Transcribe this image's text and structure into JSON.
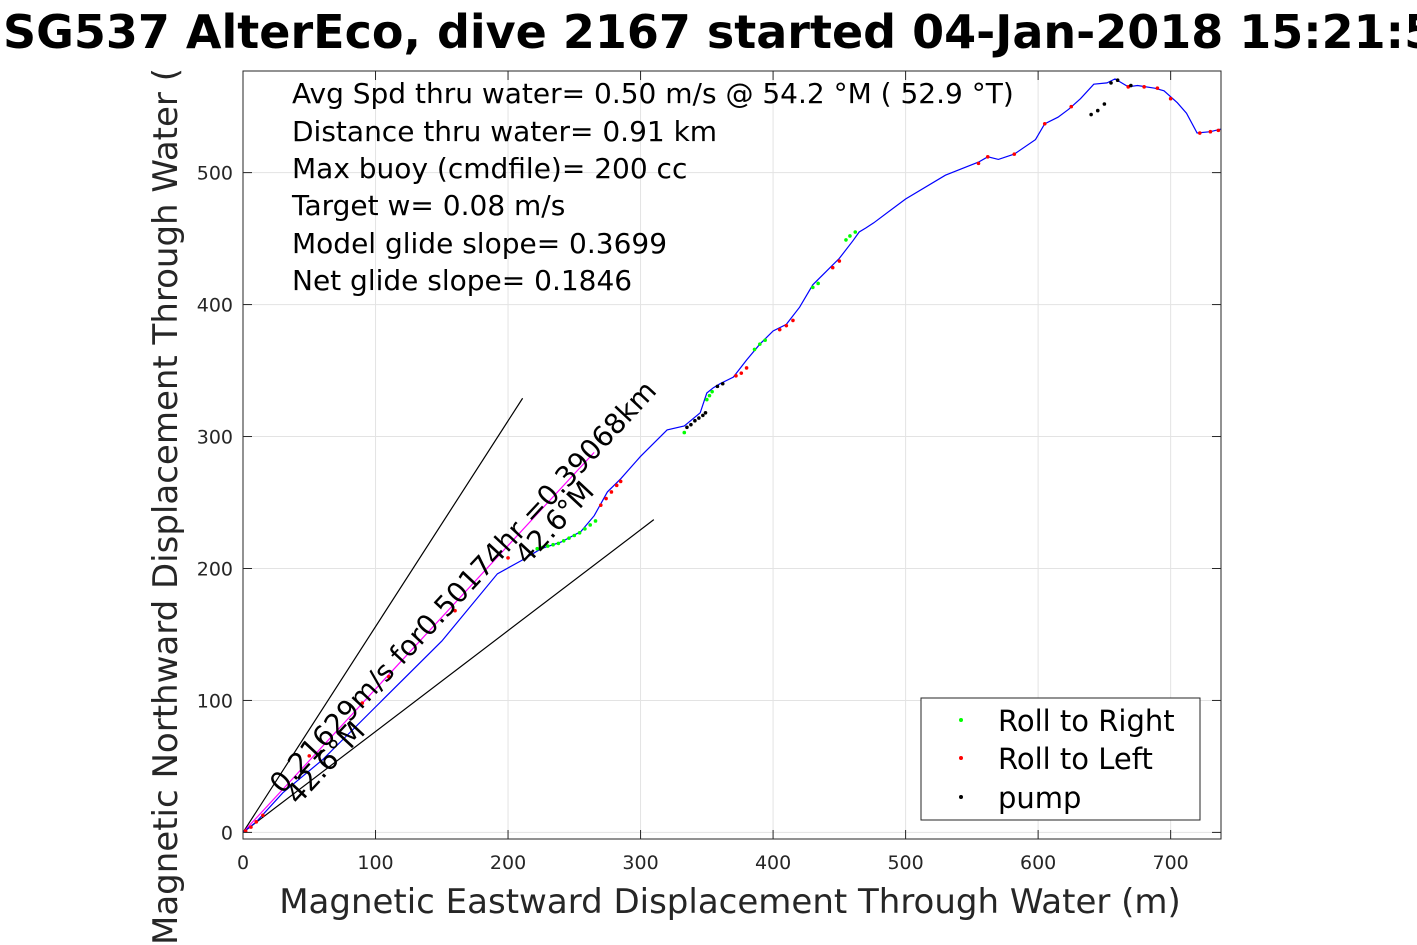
{
  "chart_data": {
    "type": "line",
    "title": "SG537 AlterEco, dive 2167 started 04-Jan-2018 15:21:5",
    "xlabel": "Magnetic Eastward Displacement Through Water (m)",
    "ylabel": "Magnetic Northward Displacement Through Water (",
    "xlim": [
      0,
      738
    ],
    "ylim": [
      -5,
      577
    ],
    "x_ticks": [
      0,
      100,
      200,
      300,
      400,
      500,
      600,
      700
    ],
    "y_ticks": [
      0,
      100,
      200,
      300,
      400,
      500
    ],
    "grid": true,
    "annotations": [
      "Avg Spd thru water=  0.50 m/s @  54.2 °M ( 52.9 °T)",
      "Distance thru water=  0.91 km",
      "Max buoy (cmdfile)= 200 cc",
      "Target w= 0.08 m/s",
      "Model glide slope= 0.3699",
      "Net glide slope= 0.1846"
    ],
    "current_label": "0.21629m/s for0.50174hr =0.39068km",
    "current_heading_label": "42.6°M",
    "track_heading_label": "42.6°M",
    "track": {
      "color": "#0000ff",
      "x": [
        0,
        10,
        30,
        60,
        100,
        150,
        192,
        210,
        225,
        240,
        255,
        265,
        275,
        285,
        300,
        320,
        333,
        345,
        350,
        355,
        360,
        370,
        380,
        390,
        400,
        410,
        420,
        430,
        440,
        450,
        460,
        465,
        470,
        476,
        500,
        530,
        555,
        562,
        570,
        582,
        598,
        605,
        615,
        623,
        632,
        642,
        652,
        658,
        668,
        675,
        688,
        695,
        705,
        712,
        720,
        730,
        738
      ],
      "y": [
        0,
        8,
        30,
        55,
        95,
        145,
        196,
        206,
        215,
        220,
        228,
        240,
        258,
        268,
        285,
        305,
        308,
        318,
        333,
        337,
        340,
        345,
        358,
        370,
        380,
        385,
        398,
        415,
        425,
        435,
        448,
        455,
        458,
        462,
        480,
        498,
        508,
        512,
        510,
        514,
        525,
        537,
        542,
        548,
        556,
        567,
        568,
        571,
        565,
        566,
        564,
        562,
        553,
        545,
        530,
        531,
        533
      ]
    },
    "current_line": {
      "color": "#ff00ff",
      "x": [
        0,
        265
      ],
      "y": [
        0,
        288
      ]
    },
    "bounding_lines": [
      {
        "x": [
          0,
          211
        ],
        "y": [
          0,
          329
        ]
      },
      {
        "x": [
          0,
          310
        ],
        "y": [
          0,
          237
        ]
      }
    ],
    "series": [
      {
        "name": "Roll to Right",
        "color": "#00ff00",
        "x": [
          222,
          226,
          230,
          234,
          238,
          242,
          246,
          250,
          254,
          258,
          262,
          266,
          333,
          350,
          352,
          354,
          386,
          390,
          394,
          430,
          434,
          455,
          458,
          462
        ],
        "y": [
          215,
          216,
          217,
          218,
          219,
          221,
          223,
          225,
          227,
          230,
          233,
          236,
          303,
          328,
          331,
          334,
          366,
          370,
          373,
          413,
          416,
          449,
          452,
          455
        ]
      },
      {
        "name": "Roll to Left",
        "color": "#ff0000",
        "x": [
          2,
          6,
          10,
          15,
          50,
          90,
          110,
          160,
          200,
          270,
          274,
          278,
          282,
          285,
          372,
          376,
          380,
          405,
          410,
          415,
          445,
          450,
          555,
          562,
          582,
          605,
          625,
          668,
          680,
          690,
          700,
          722,
          730,
          736
        ],
        "y": [
          1,
          4,
          8,
          13,
          58,
          98,
          118,
          168,
          208,
          248,
          253,
          258,
          263,
          266,
          346,
          348,
          352,
          381,
          384,
          388,
          428,
          433,
          507,
          512,
          514,
          537,
          550,
          565,
          565,
          564,
          556,
          530,
          531,
          532
        ]
      },
      {
        "name": "pump",
        "color": "#000000",
        "x": [
          335,
          338,
          341,
          344,
          347,
          349,
          358,
          362,
          640,
          645,
          650,
          655,
          660,
          670
        ],
        "y": [
          307,
          309,
          312,
          314,
          316,
          318,
          338,
          340,
          544,
          547,
          552,
          568,
          570,
          566
        ]
      }
    ],
    "legend_position": "bottom-right"
  }
}
